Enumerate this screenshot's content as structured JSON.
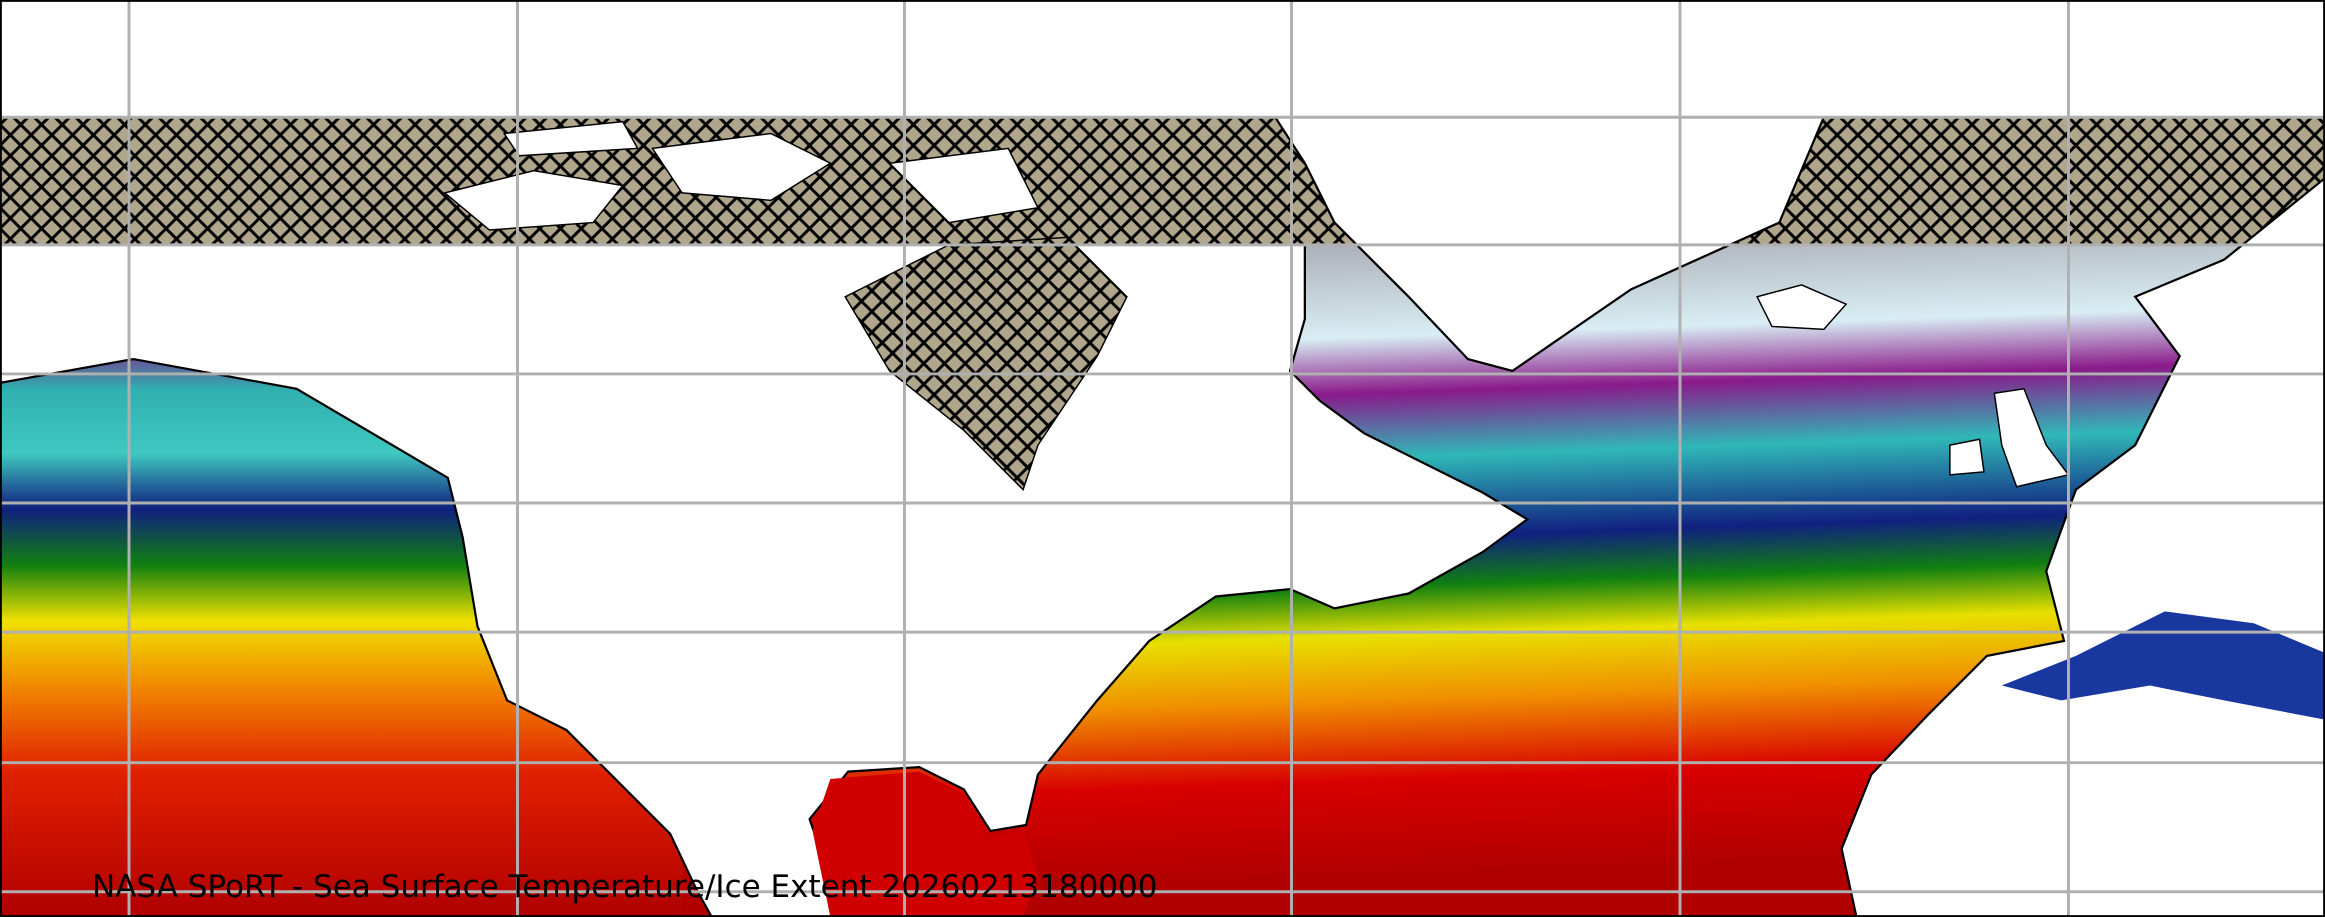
{
  "caption": "NASA SPoRT - Sea Surface Temperature/Ice Extent 20260213180000",
  "legend_colors": {
    "ice_hatch": "#b0a68c",
    "cold": "#d8e8f0",
    "purple": "#8a1a8a",
    "teal": "#30c0c0",
    "blue": "#102080",
    "green": "#108010",
    "yellow": "#f0e000",
    "orange": "#f08000",
    "red": "#c80000",
    "land": "#ffffff",
    "grid": "#b0b0b0"
  }
}
